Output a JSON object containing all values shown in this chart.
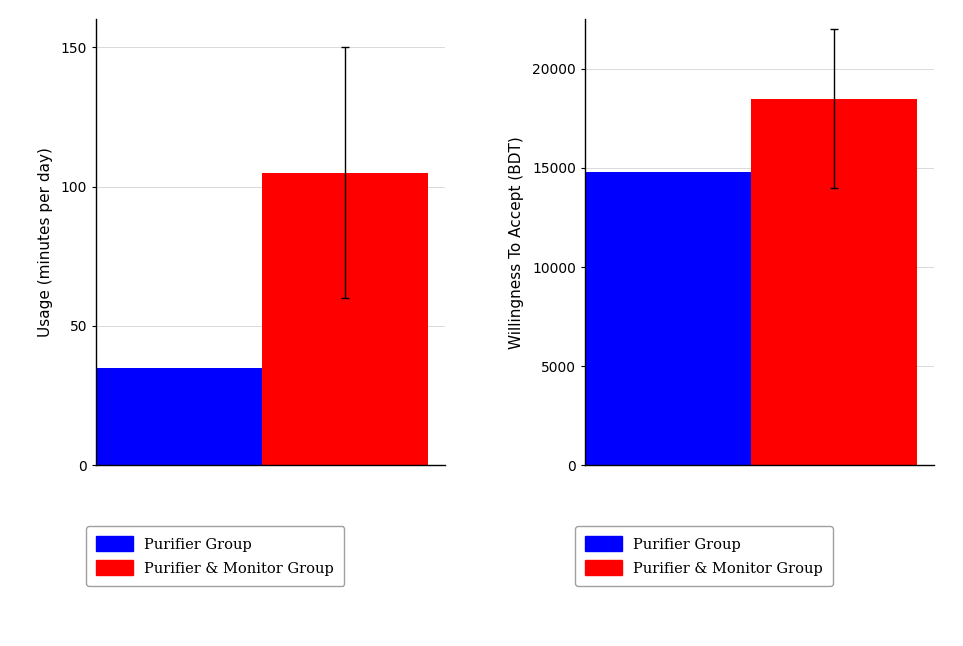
{
  "left_chart": {
    "ylabel": "Usage (minutes per day)",
    "ylim": [
      0,
      160
    ],
    "yticks": [
      0,
      50,
      100,
      150
    ],
    "bars": [
      {
        "label": "Purifier Group",
        "value": 35,
        "color": "#0000FF",
        "err_low": null,
        "err_high": null
      },
      {
        "label": "Purifier & Monitor Group",
        "value": 105,
        "color": "#FF0000",
        "err_low": 60,
        "err_high": 150
      }
    ]
  },
  "right_chart": {
    "ylabel": "Willingness To Accept (BDT)",
    "ylim": [
      0,
      22500
    ],
    "yticks": [
      0,
      5000,
      10000,
      15000,
      20000
    ],
    "bars": [
      {
        "label": "Purifier Group",
        "value": 14800,
        "color": "#0000FF",
        "err_low": null,
        "err_high": null
      },
      {
        "label": "Purifier & Monitor Group",
        "value": 18500,
        "color": "#FF0000",
        "err_low": 14000,
        "err_high": 22000
      }
    ]
  },
  "legend_labels": [
    "Purifier Group",
    "Purifier & Monitor Group"
  ],
  "legend_colors": [
    "#0000FF",
    "#FF0000"
  ],
  "background_color": "#FFFFFF",
  "grid_color": "#AAAAAA",
  "font_family": "DejaVu Serif"
}
